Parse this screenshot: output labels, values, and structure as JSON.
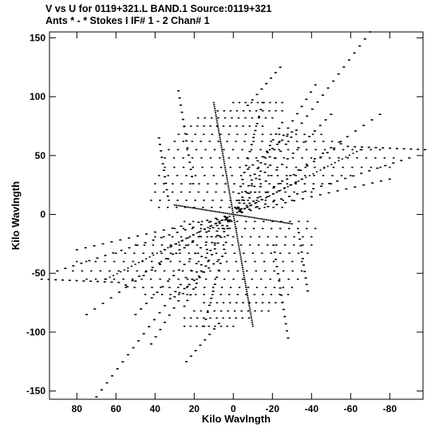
{
  "title_line1": "V vs U for 0119+321.L BAND.1   Source:0119+321",
  "title_line2": "Ants * - *    Stokes I   IF# 1 - 2   Chan# 1",
  "colors": {
    "points": "#000000",
    "frame": "#000000",
    "background": "#ffffff"
  },
  "chart_data": {
    "type": "scatter",
    "title": "V vs U for 0119+321.L BAND.1   Source:0119+321",
    "subtitle": "Ants * - *    Stokes I   IF# 1 - 2   Chan# 1",
    "xlabel": "Kilo Wavlngth",
    "ylabel": "Kilo Wavlngth",
    "xlim": [
      94,
      -97
    ],
    "ylim": [
      -157,
      155
    ],
    "x_reversed": true,
    "xticks": [
      80,
      60,
      40,
      20,
      0,
      -20,
      -40,
      -60,
      -80
    ],
    "xtick_labels": [
      "80",
      "60",
      "40",
      "20",
      "0",
      "-20",
      "-40",
      "-60",
      "-80"
    ],
    "yticks": [
      -150,
      -100,
      -50,
      0,
      50,
      100,
      150
    ],
    "ytick_labels": [
      "-150",
      "-100",
      "-50",
      "0",
      "50",
      "100",
      "150"
    ],
    "grid": false,
    "legend": "none",
    "point_marker": "dash",
    "tracks": [
      {
        "from": [
          0,
          0
        ],
        "to": [
          -70,
          155
        ],
        "n": 26
      },
      {
        "from": [
          0,
          0
        ],
        "to": [
          70,
          -155
        ],
        "n": 26
      },
      {
        "from": [
          0,
          0
        ],
        "to": [
          -50,
          85
        ],
        "n": 18
      },
      {
        "from": [
          0,
          0
        ],
        "to": [
          50,
          -85
        ],
        "n": 18
      },
      {
        "from": [
          0,
          0
        ],
        "to": [
          -90,
          48
        ],
        "n": 22
      },
      {
        "from": [
          0,
          0
        ],
        "to": [
          90,
          -48
        ],
        "n": 22
      },
      {
        "from": [
          0,
          0
        ],
        "to": [
          -25,
          78
        ],
        "n": 16
      },
      {
        "from": [
          0,
          0
        ],
        "to": [
          25,
          -78
        ],
        "n": 16
      },
      {
        "from": [
          0,
          0
        ],
        "to": [
          -55,
          60
        ],
        "n": 16
      },
      {
        "from": [
          0,
          0
        ],
        "to": [
          55,
          -60
        ],
        "n": 16
      },
      {
        "from": [
          0,
          0
        ],
        "to": [
          -75,
          85
        ],
        "n": 18
      },
      {
        "from": [
          0,
          0
        ],
        "to": [
          75,
          -85
        ],
        "n": 18
      },
      {
        "from": [
          0,
          0
        ],
        "to": [
          -35,
          30
        ],
        "n": 12
      },
      {
        "from": [
          0,
          0
        ],
        "to": [
          35,
          -30
        ],
        "n": 12
      },
      {
        "from": [
          0,
          0
        ],
        "to": [
          -15,
          95
        ],
        "n": 16
      },
      {
        "from": [
          0,
          0
        ],
        "to": [
          15,
          -95
        ],
        "n": 16
      },
      {
        "from": [
          0,
          0
        ],
        "to": [
          -42,
          110
        ],
        "n": 18
      },
      {
        "from": [
          0,
          0
        ],
        "to": [
          42,
          -110
        ],
        "n": 18
      },
      {
        "from": [
          0,
          0
        ],
        "to": [
          -80,
          30
        ],
        "n": 18
      },
      {
        "from": [
          0,
          0
        ],
        "to": [
          80,
          -30
        ],
        "n": 18
      },
      {
        "from": [
          -5,
          88
        ],
        "to": [
          -24,
          125
        ],
        "n": 8
      },
      {
        "from": [
          5,
          -88
        ],
        "to": [
          24,
          -125
        ],
        "n": 8
      },
      {
        "from": [
          -20,
          -20
        ],
        "to": [
          -28,
          -105
        ],
        "n": 14
      },
      {
        "from": [
          20,
          20
        ],
        "to": [
          28,
          105
        ],
        "n": 14
      },
      {
        "from": [
          -33,
          -10
        ],
        "to": [
          -38,
          -65
        ],
        "n": 10
      },
      {
        "from": [
          33,
          10
        ],
        "to": [
          38,
          65
        ],
        "n": 10
      },
      {
        "from": [
          -55,
          58
        ],
        "to": [
          -98,
          55
        ],
        "n": 12
      },
      {
        "from": [
          55,
          -58
        ],
        "to": [
          98,
          -55
        ],
        "n": 12
      },
      {
        "from": [
          -5,
          35
        ],
        "to": [
          -30,
          70
        ],
        "n": 10
      },
      {
        "from": [
          5,
          -35
        ],
        "to": [
          30,
          -70
        ],
        "n": 10
      }
    ],
    "rows": [
      {
        "y": 95,
        "x_from": -25,
        "x_to": 0,
        "n": 9
      },
      {
        "y": 88,
        "x_from": -25,
        "x_to": 8,
        "n": 11
      },
      {
        "y": 82,
        "x_from": -20,
        "x_to": 18,
        "n": 12
      },
      {
        "y": 75,
        "x_from": -15,
        "x_to": 25,
        "n": 13
      },
      {
        "y": 68,
        "x_from": -45,
        "x_to": 28,
        "n": 18
      },
      {
        "y": 62,
        "x_from": -55,
        "x_to": 30,
        "n": 20
      },
      {
        "y": 55,
        "x_from": -75,
        "x_to": 33,
        "n": 24
      },
      {
        "y": 48,
        "x_from": -82,
        "x_to": 35,
        "n": 26
      },
      {
        "y": 40,
        "x_from": -80,
        "x_to": 35,
        "n": 25
      },
      {
        "y": 33,
        "x_from": -60,
        "x_to": 38,
        "n": 22
      },
      {
        "y": 26,
        "x_from": -50,
        "x_to": 40,
        "n": 21
      },
      {
        "y": 19,
        "x_from": -40,
        "x_to": 40,
        "n": 19
      },
      {
        "y": 12,
        "x_from": -30,
        "x_to": 42,
        "n": 17
      },
      {
        "y": 6,
        "x_from": -25,
        "x_to": 38,
        "n": 15
      },
      {
        "y": -6,
        "x_from": -38,
        "x_to": 25,
        "n": 15
      },
      {
        "y": -12,
        "x_from": -42,
        "x_to": 30,
        "n": 17
      },
      {
        "y": -19,
        "x_from": -40,
        "x_to": 40,
        "n": 19
      },
      {
        "y": -26,
        "x_from": -40,
        "x_to": 50,
        "n": 21
      },
      {
        "y": -33,
        "x_from": -38,
        "x_to": 60,
        "n": 22
      },
      {
        "y": -40,
        "x_from": -35,
        "x_to": 80,
        "n": 25
      },
      {
        "y": -48,
        "x_from": -35,
        "x_to": 82,
        "n": 26
      },
      {
        "y": -55,
        "x_from": -33,
        "x_to": 75,
        "n": 24
      },
      {
        "y": -62,
        "x_from": -30,
        "x_to": 55,
        "n": 20
      },
      {
        "y": -68,
        "x_from": -28,
        "x_to": 45,
        "n": 18
      },
      {
        "y": -75,
        "x_from": -25,
        "x_to": 15,
        "n": 13
      },
      {
        "y": -82,
        "x_from": -18,
        "x_to": 20,
        "n": 12
      },
      {
        "y": -88,
        "x_from": -8,
        "x_to": 25,
        "n": 11
      },
      {
        "y": -95,
        "x_from": 0,
        "x_to": 25,
        "n": 9
      }
    ],
    "dense_lines": [
      {
        "from": [
          10,
          95
        ],
        "to": [
          -10,
          -95
        ],
        "n": 110
      },
      {
        "from": [
          30,
          8
        ],
        "to": [
          -30,
          -8
        ],
        "n": 60
      },
      {
        "from": [
          -65,
          55
        ],
        "to": [
          65,
          -55
        ],
        "n": 70
      }
    ]
  }
}
